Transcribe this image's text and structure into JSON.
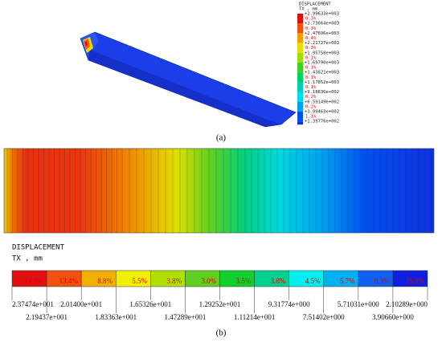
{
  "panel_a": {
    "caption": "(a)",
    "legend": {
      "title": "DISPLACEMENT",
      "unit": "TX , mm",
      "labels": [
        "+2.99633e+003",
        "+2.73664e+003",
        "+2.47696e+003",
        "+2.21727e+003",
        "+1.95758e+003",
        "+1.69790e+003",
        "+1.43821e+003",
        "+1.17852e+003",
        "+9.18836e+002",
        "+6.59149e+002",
        "+3.99463e+002",
        "+1.39776e+002"
      ],
      "percents": [
        "0.3%",
        "0.3%",
        "0.4%",
        "0.3%",
        "0.1%",
        "0.1%",
        "0.1%",
        "0.1%",
        "0.2%",
        "0.2%",
        "1.1%"
      ]
    }
  },
  "panel_b": {
    "caption": "(b)",
    "legend": {
      "title": "DISPLACEMENT",
      "unit": "TX , mm",
      "labels": [
        "2.37474e+001",
        "2.19437e+001",
        "2.01400e+001",
        "1.83363e+001",
        "1.65326e+001",
        "1.47289e+001",
        "1.29252e+001",
        "1.11214e+001",
        "9.31774e+000",
        "7.51402e+000",
        "5.71031e+000",
        "3.90660e+000",
        "2.10289e+000"
      ],
      "percents": [
        "14.5%",
        "13.4%",
        "8.8%",
        "5.5%",
        "3.8%",
        "3.0%",
        "3.5%",
        "3.8%",
        "4.5%",
        "5.7%",
        "8.3%",
        "25.3%"
      ]
    }
  }
}
